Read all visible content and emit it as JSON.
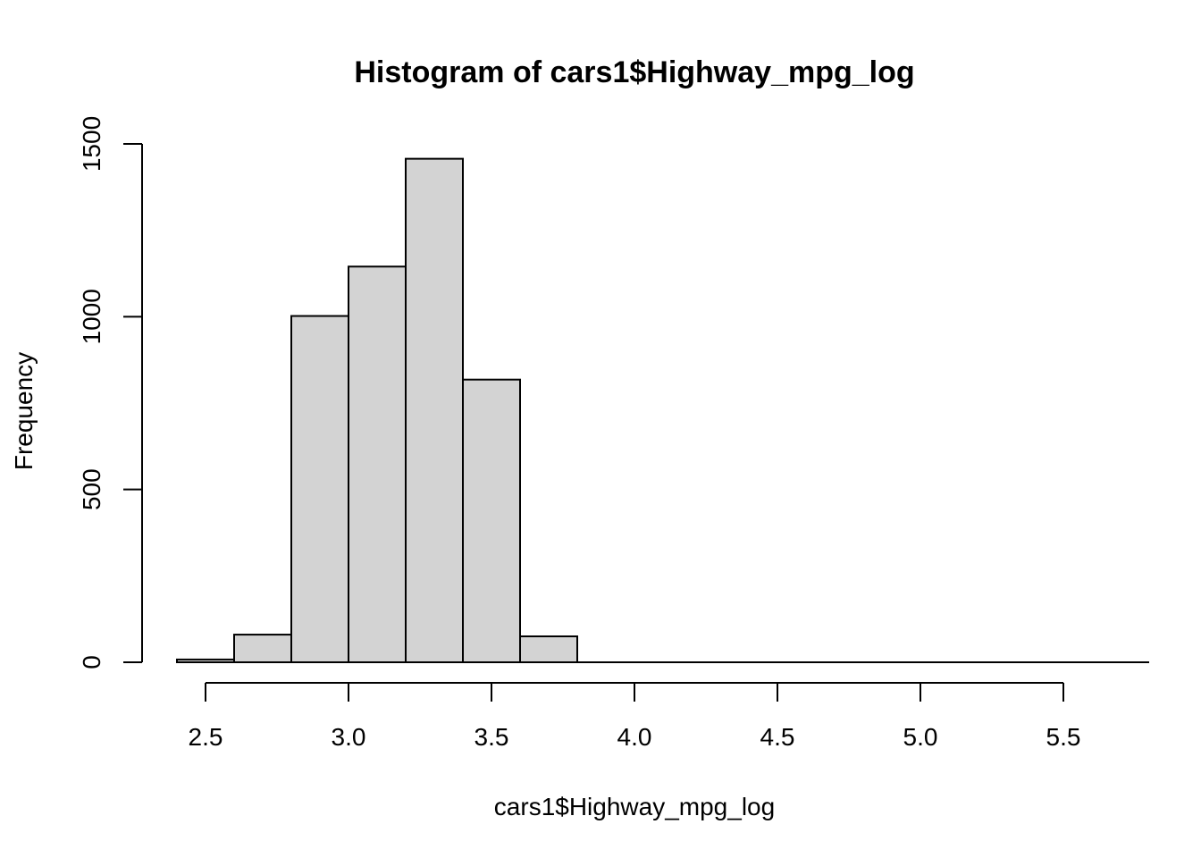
{
  "chart_data": {
    "type": "bar",
    "title": "Histogram of cars1$Highway_mpg_log",
    "xlabel": "cars1$Highway_mpg_log",
    "ylabel": "Frequency",
    "bins": [
      {
        "start": 2.4,
        "end": 2.6,
        "count": 8
      },
      {
        "start": 2.6,
        "end": 2.8,
        "count": 80
      },
      {
        "start": 2.8,
        "end": 3.0,
        "count": 1002
      },
      {
        "start": 3.0,
        "end": 3.2,
        "count": 1145
      },
      {
        "start": 3.2,
        "end": 3.4,
        "count": 1457
      },
      {
        "start": 3.4,
        "end": 3.6,
        "count": 818
      },
      {
        "start": 3.6,
        "end": 3.8,
        "count": 75
      },
      {
        "start": 3.8,
        "end": 4.0,
        "count": 0
      },
      {
        "start": 4.0,
        "end": 4.2,
        "count": 0
      },
      {
        "start": 4.2,
        "end": 4.4,
        "count": 0
      },
      {
        "start": 4.4,
        "end": 4.6,
        "count": 0
      },
      {
        "start": 4.6,
        "end": 4.8,
        "count": 0
      },
      {
        "start": 4.8,
        "end": 5.0,
        "count": 0
      },
      {
        "start": 5.0,
        "end": 5.2,
        "count": 0
      },
      {
        "start": 5.2,
        "end": 5.4,
        "count": 0
      },
      {
        "start": 5.4,
        "end": 5.6,
        "count": 0
      },
      {
        "start": 5.6,
        "end": 5.8,
        "count": 0
      }
    ],
    "xlim": [
      2.4,
      5.5
    ],
    "ylim": [
      0,
      1500
    ],
    "x_ticks": [
      2.5,
      3.0,
      3.5,
      4.0,
      4.5,
      5.0,
      5.5
    ],
    "x_tick_labels": [
      "2.5",
      "3.0",
      "3.5",
      "4.0",
      "4.5",
      "5.0",
      "5.5"
    ],
    "y_ticks": [
      0,
      500,
      1000,
      1500
    ],
    "y_tick_labels": [
      "0",
      "500",
      "1000",
      "1500"
    ],
    "grid": false,
    "legend": "none",
    "bar_color": "#d3d3d3"
  }
}
